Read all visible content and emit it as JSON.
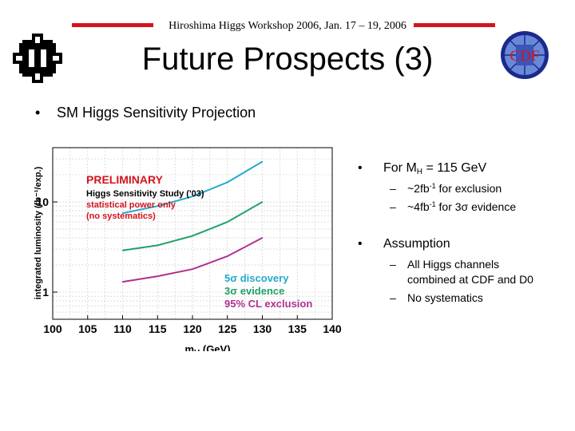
{
  "header": {
    "text": "Hiroshima Higgs Workshop 2006, Jan. 17 – 19, 2006"
  },
  "slide": {
    "title": "Future Prospects (3)"
  },
  "logos": {
    "left_icon": "fermilab-logo-icon",
    "right_text": "CDF"
  },
  "bullet_main": {
    "label": "SM Higgs Sensitivity Projection"
  },
  "right_column": {
    "b1": {
      "prefix": "For M",
      "sub": "H",
      "suffix": " = 115 GeV"
    },
    "s1": {
      "prefix": "~2fb",
      "sup": "-1",
      "suffix": " for exclusion"
    },
    "s2": {
      "prefix": "~4fb",
      "sup": "-1",
      "suffix": " for 3σ evidence"
    },
    "b2": {
      "label": "Assumption"
    },
    "s3": {
      "line1": "All Higgs channels",
      "line2": "combined at CDF and D0"
    },
    "s4": {
      "label": "No systematics"
    }
  },
  "chart_data": {
    "type": "line",
    "ylabel": "integrated luminosity (fb⁻¹/exp.)",
    "xlabel": "mH (GeV)",
    "xlim": [
      100,
      140
    ],
    "ylim": [
      0.5,
      40
    ],
    "yscale": "log",
    "x_ticks": [
      "100",
      "105",
      "110",
      "115",
      "120",
      "125",
      "130",
      "135",
      "140"
    ],
    "y_ticks": [
      "1",
      "10"
    ],
    "grid": true,
    "x": [
      110,
      115,
      120,
      125,
      130
    ],
    "series": [
      {
        "name": "5σ discovery",
        "color": "#22aacc",
        "values": [
          7.5,
          9.0,
          11.5,
          16.5,
          28
        ]
      },
      {
        "name": "3σ evidence",
        "color": "#22a06a",
        "values": [
          2.9,
          3.3,
          4.2,
          6.0,
          10.0
        ]
      },
      {
        "name": "95% CL exclusion",
        "color": "#b03090",
        "values": [
          1.3,
          1.5,
          1.8,
          2.5,
          4.0
        ]
      }
    ],
    "annotations": [
      {
        "text": "PRELIMINARY",
        "color": "#d4141e"
      },
      {
        "text": "Higgs Sensitivity Study ('03)",
        "color": "#000000"
      },
      {
        "text": "statistical power only",
        "color": "#d4141e"
      },
      {
        "text": "(no systematics)",
        "color": "#d4141e"
      }
    ],
    "legend_position": "bottom-right"
  }
}
